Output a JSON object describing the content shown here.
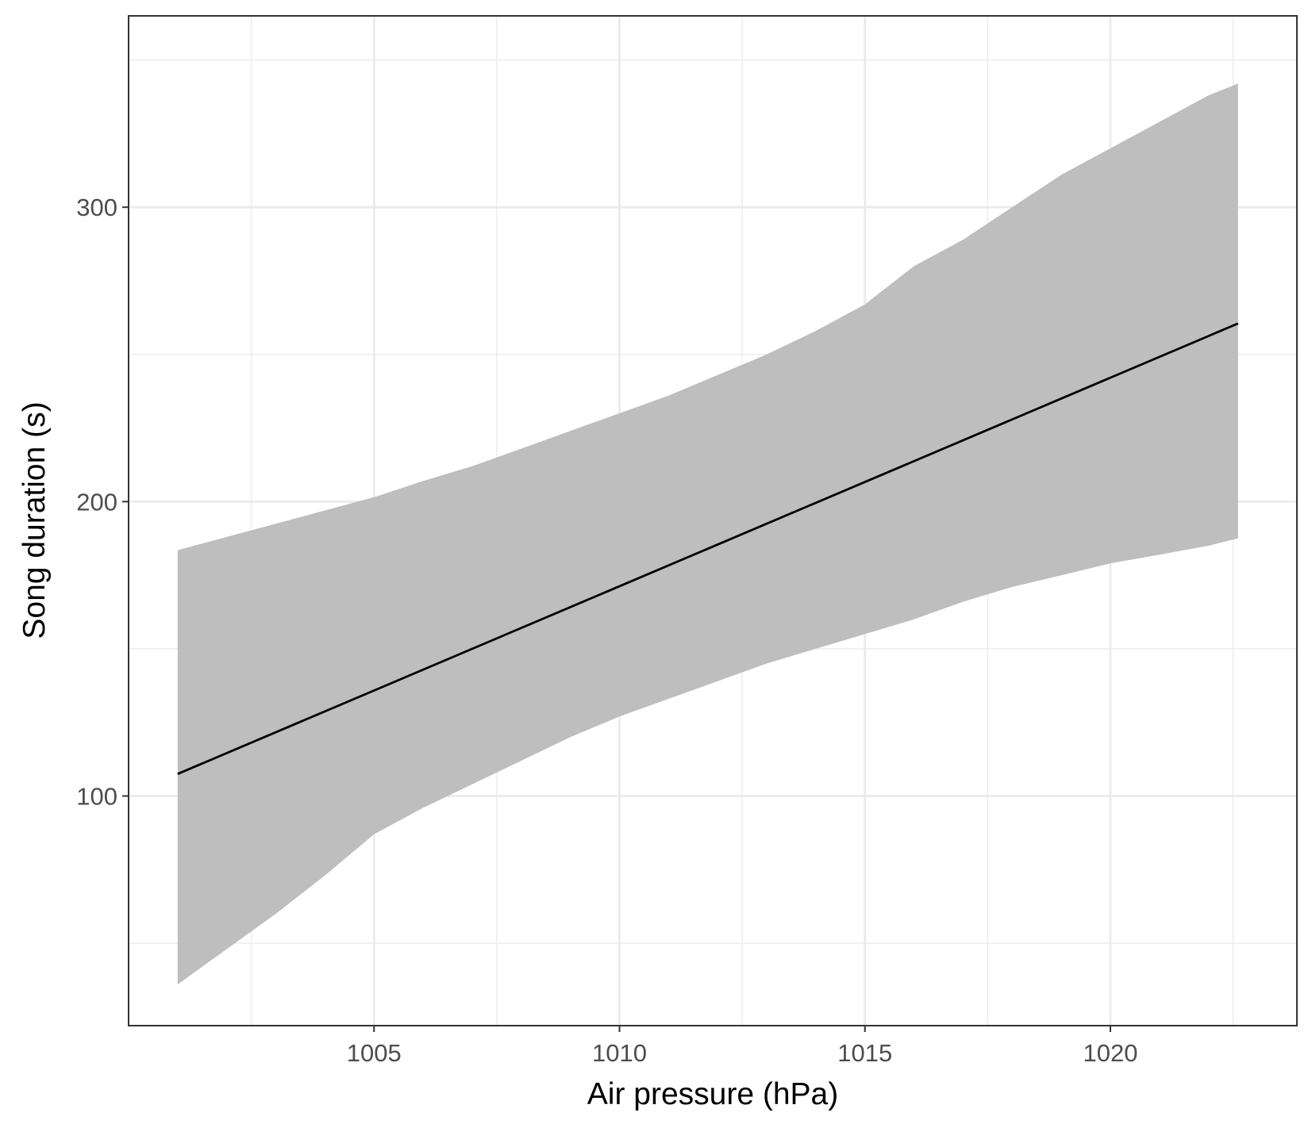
{
  "chart_data": {
    "type": "line",
    "title": "",
    "xlabel": "Air pressure (hPa)",
    "ylabel": "Song duration (s)",
    "xlim": [
      1000.0,
      1023.8
    ],
    "ylim": [
      22,
      365
    ],
    "x_ticks": [
      1005,
      1010,
      1015,
      1020
    ],
    "y_ticks": [
      100,
      200,
      300
    ],
    "x_tick_labels": [
      "1005",
      "1010",
      "1015",
      "1020"
    ],
    "y_tick_labels": [
      "100",
      "200",
      "300"
    ],
    "grid": true,
    "legend": "none",
    "series": [
      {
        "type": "line",
        "color": "#000000",
        "x": [
          1001.0,
          1022.6
        ],
        "y": [
          107.5,
          260.5
        ]
      }
    ],
    "confidence_band": {
      "color": "#bebebe",
      "x": [
        1001.0,
        1002.0,
        1003.0,
        1004.0,
        1005.0,
        1006.0,
        1007.0,
        1008.0,
        1009.0,
        1010.0,
        1011.0,
        1012.0,
        1013.0,
        1014.0,
        1015.0,
        1016.0,
        1017.0,
        1018.0,
        1019.0,
        1020.0,
        1021.0,
        1022.0,
        1022.6
      ],
      "upper": [
        183.5,
        188,
        192.5,
        197,
        201.5,
        207,
        212,
        218,
        224,
        230,
        236,
        243,
        250,
        258,
        267,
        280,
        289,
        300,
        311,
        320,
        329,
        338,
        342
      ],
      "lower": [
        36,
        48,
        60,
        73,
        87,
        96,
        104,
        112,
        120,
        127,
        133,
        139,
        145,
        150,
        155,
        160,
        166,
        171,
        175,
        179,
        182,
        185,
        187.5
      ]
    }
  }
}
